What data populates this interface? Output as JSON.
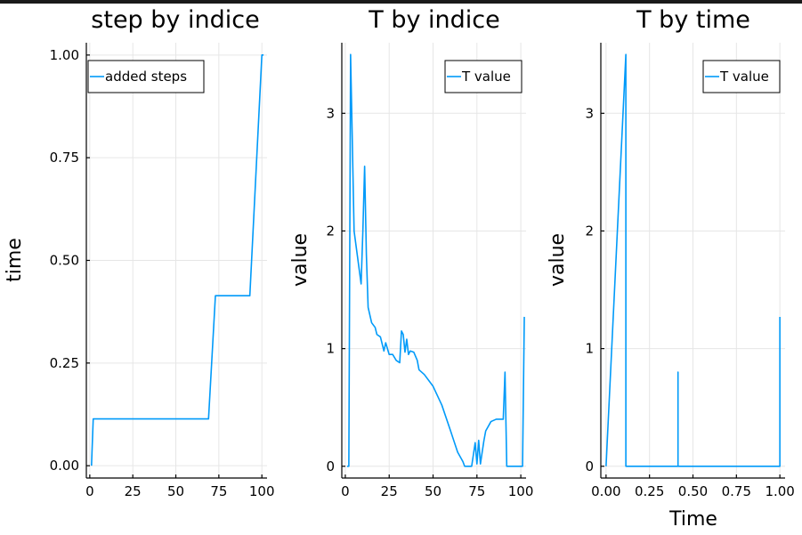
{
  "chart_data": [
    {
      "type": "line",
      "title": "step by indice",
      "xlabel": "",
      "ylabel": "time",
      "xlim": [
        -2,
        103
      ],
      "ylim": [
        -0.03,
        1.03
      ],
      "xticks": [
        0,
        25,
        50,
        75,
        100
      ],
      "xtick_labels": [
        "0",
        "25",
        "50",
        "75",
        "100"
      ],
      "yticks": [
        0,
        0.25,
        0.5,
        0.75,
        1.0
      ],
      "ytick_labels": [
        "0.00",
        "0.25",
        "0.50",
        "0.75",
        "1.00"
      ],
      "grid": true,
      "legend_position": "top-left",
      "series": [
        {
          "name": "added steps",
          "color": "#009af9",
          "x": [
            1,
            2,
            69,
            73,
            93,
            100,
            101
          ],
          "y": [
            0,
            0.114,
            0.114,
            0.414,
            0.414,
            1.0,
            1.0
          ]
        }
      ]
    },
    {
      "type": "line",
      "title": "T by indice",
      "xlabel": "",
      "ylabel": "value",
      "xlim": [
        -2,
        103
      ],
      "ylim": [
        -0.1,
        3.6
      ],
      "xticks": [
        0,
        25,
        50,
        75,
        100
      ],
      "xtick_labels": [
        "0",
        "25",
        "50",
        "75",
        "100"
      ],
      "yticks": [
        0,
        1,
        2,
        3
      ],
      "ytick_labels": [
        "0",
        "1",
        "2",
        "3"
      ],
      "grid": true,
      "legend_position": "top-right",
      "series": [
        {
          "name": "T value",
          "color": "#009af9",
          "x": [
            1,
            2,
            3,
            5,
            9,
            10,
            11,
            12,
            13,
            15,
            17,
            18,
            20,
            22,
            23,
            25,
            27,
            29,
            31,
            32,
            33,
            34,
            35,
            36,
            37,
            39,
            41,
            42,
            45,
            50,
            55,
            60,
            64,
            67,
            68,
            70,
            72,
            74,
            75,
            76,
            77,
            78,
            79,
            80,
            83,
            86,
            90,
            91,
            92,
            93,
            94,
            96,
            101,
            102
          ],
          "y": [
            0,
            0,
            3.5,
            2.0,
            1.55,
            2.0,
            2.55,
            1.8,
            1.35,
            1.22,
            1.18,
            1.12,
            1.1,
            0.98,
            1.05,
            0.95,
            0.95,
            0.9,
            0.88,
            1.15,
            1.12,
            0.97,
            1.08,
            0.95,
            0.98,
            0.97,
            0.9,
            0.82,
            0.78,
            0.68,
            0.52,
            0.3,
            0.12,
            0.04,
            0,
            0,
            0,
            0.2,
            0.02,
            0.22,
            0.02,
            0.12,
            0.22,
            0.3,
            0.38,
            0.4,
            0.4,
            0.8,
            0,
            0,
            0,
            0,
            0,
            1.27
          ]
        }
      ]
    },
    {
      "type": "line",
      "title": "T by time",
      "xlabel": "Time",
      "ylabel": "value",
      "xlim": [
        -0.03,
        1.03
      ],
      "ylim": [
        -0.1,
        3.6
      ],
      "xticks": [
        0,
        0.25,
        0.5,
        0.75,
        1.0
      ],
      "xtick_labels": [
        "0.00",
        "0.25",
        "0.50",
        "0.75",
        "1.00"
      ],
      "yticks": [
        0,
        1,
        2,
        3
      ],
      "ytick_labels": [
        "0",
        "1",
        "2",
        "3"
      ],
      "grid": true,
      "legend_position": "top-right",
      "series": [
        {
          "name": "T value",
          "color": "#009af9",
          "x": [
            0,
            0.114,
            0.114,
            0.414,
            0.414,
            0.414,
            1.0,
            1.0
          ],
          "y": [
            0,
            3.5,
            0,
            0,
            0.8,
            0,
            0,
            1.27
          ]
        }
      ]
    }
  ]
}
